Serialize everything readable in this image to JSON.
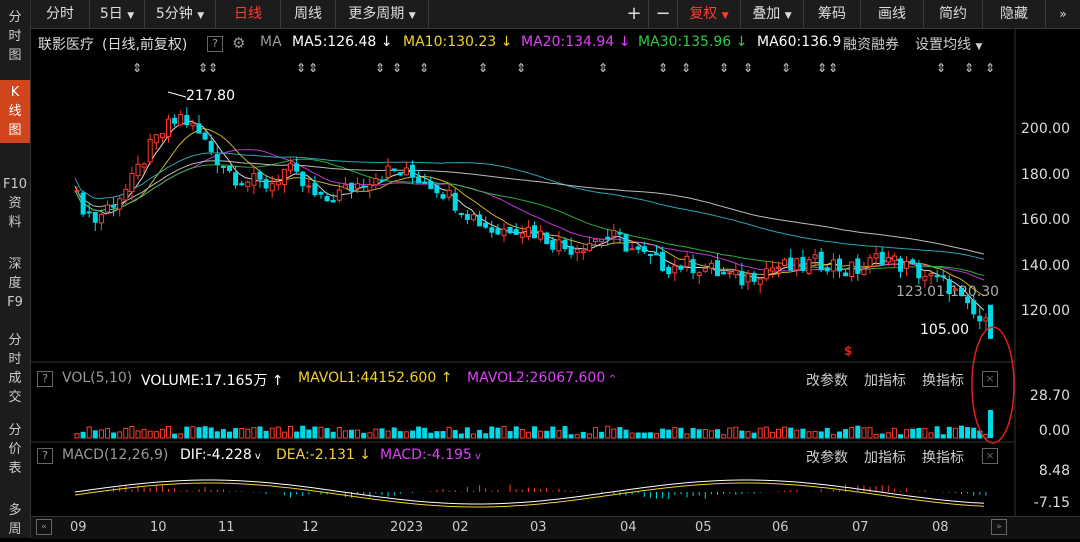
{
  "sidebar": {
    "items": [
      {
        "label": "分时图",
        "active": false
      },
      {
        "label": "K线图",
        "active": true
      },
      {
        "label": "F10资料",
        "active": false
      },
      {
        "label": "深度F9",
        "active": false
      },
      {
        "label": "分时成交",
        "active": false
      },
      {
        "label": "分价表",
        "active": false
      },
      {
        "label": "多周",
        "active": false
      }
    ]
  },
  "toolbar": {
    "left": [
      "分时",
      "5日",
      "5分钟",
      "日线",
      "周线",
      "更多周期"
    ],
    "active": "日线",
    "right": [
      "复权",
      "叠加",
      "筹码",
      "画线",
      "简约",
      "隐藏"
    ],
    "plus_icon": "plus-icon",
    "minus_icon": "minus-icon"
  },
  "main_panel": {
    "stock": "联影医疗",
    "mode": "(日线,前复权)",
    "ma_label": "MA",
    "ma": [
      {
        "name": "MA5:126.48",
        "color": "#ffffff"
      },
      {
        "name": "MA10:130.23",
        "color": "#f2d22e"
      },
      {
        "name": "MA20:134.94",
        "color": "#e040fb"
      },
      {
        "name": "MA30:135.96",
        "color": "#2ecc40"
      },
      {
        "name": "MA60:136.9",
        "color": "#ffffff"
      }
    ],
    "rzrq": "融资融券",
    "set_ma": "设置均线",
    "annot_high": "217.80",
    "annot_range": "123.01-120.30",
    "annot_low": "105.00"
  },
  "vol_panel": {
    "name": "VOL(5,10)",
    "volume": "VOLUME:17.165万",
    "mavol1": "MAVOL1:44152.600",
    "mavol2": "MAVOL2:26067.600",
    "y_top": "28.70",
    "y_bottom": "0.00"
  },
  "macd_panel": {
    "name": "MACD(12,26,9)",
    "dif": "DIF:-4.228",
    "dea": "DEA:-2.131",
    "macd": "MACD:-4.195",
    "y_top": "8.48",
    "y_bottom": "-7.15"
  },
  "panel_actions": [
    "改参数",
    "加指标",
    "换指标"
  ],
  "colors": {
    "up": "#ff3b2f",
    "down": "#00d8e6",
    "accent": "#d0451b"
  },
  "chart_data": {
    "type": "candlestick",
    "title": "联影医疗 (日线,前复权)",
    "x_ticks": [
      "09",
      "10",
      "11",
      "12",
      "2023",
      "02",
      "03",
      "04",
      "05",
      "06",
      "07",
      "08"
    ],
    "y_ticks": [
      "200.00",
      "180.00",
      "160.00",
      "140.00",
      "120.00"
    ],
    "ylim": [
      100,
      230
    ],
    "marked": {
      "high": 217.8,
      "range": [
        123.01,
        120.3
      ],
      "low": 105.0
    },
    "close_series": [
      170,
      160,
      168,
      175,
      190,
      200,
      206,
      198,
      188,
      180,
      177,
      176,
      183,
      175,
      168,
      172,
      176,
      180,
      182,
      180,
      178,
      173,
      166,
      160,
      155,
      158,
      156,
      152,
      148,
      150,
      153,
      152,
      146,
      142,
      140,
      141,
      139,
      136,
      134,
      138,
      140,
      139,
      141,
      142,
      138,
      139,
      145,
      141,
      138,
      134,
      131,
      120,
      114
    ]
  }
}
